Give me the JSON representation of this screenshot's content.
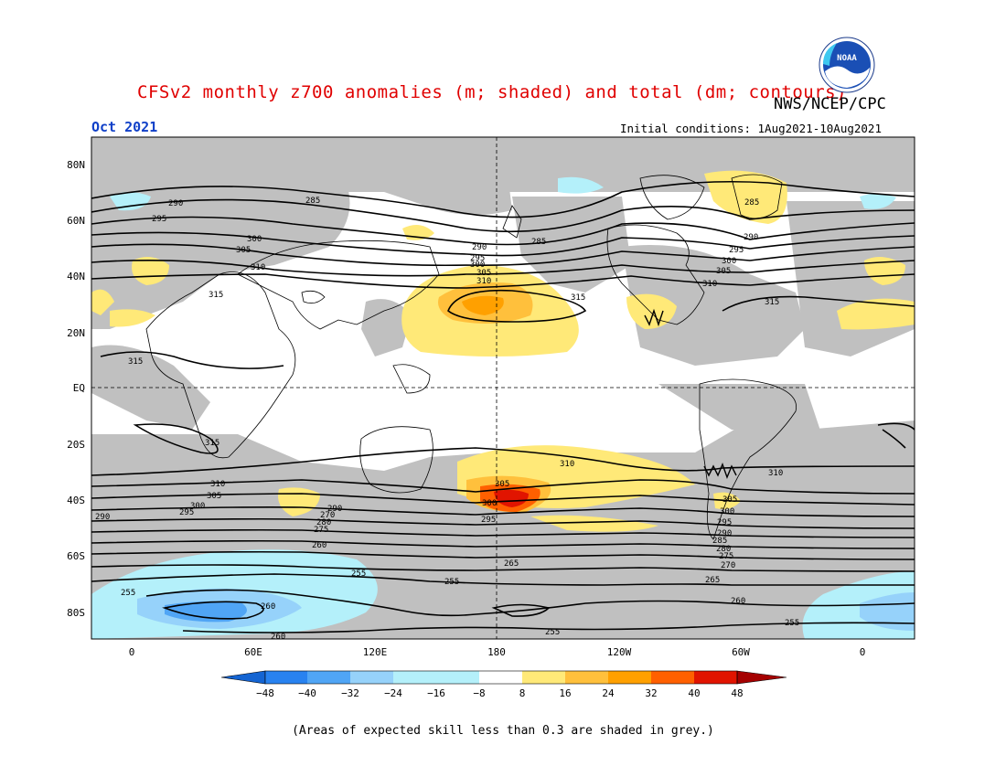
{
  "header": {
    "title": "CFSv2 monthly z700 anomalies (m; shaded) and total (dm; contours)",
    "agency": "NWS/NCEP/CPC",
    "month": "Oct 2021",
    "initial_conditions": "Initial conditions: 1Aug2021-10Aug2021",
    "logo_text": "NOAA"
  },
  "axes": {
    "lat_labels": [
      "80N",
      "60N",
      "40N",
      "20N",
      "EQ",
      "20S",
      "40S",
      "60S",
      "80S"
    ],
    "lon_labels": [
      "0",
      "60E",
      "120E",
      "180",
      "120W",
      "60W",
      "0"
    ]
  },
  "colorbar": {
    "labels": [
      "−48",
      "−40",
      "−32",
      "−24",
      "−16",
      "−8",
      "8",
      "16",
      "24",
      "32",
      "40",
      "48"
    ],
    "colors": [
      "#1464d2",
      "#2882f0",
      "#50a5f5",
      "#96d2fa",
      "#b4f0fa",
      "#ffffff",
      "#ffe978",
      "#ffc03c",
      "#ffa000",
      "#ff6000",
      "#e11400",
      "#a50000"
    ]
  },
  "contour_labels": [
    "285",
    "290",
    "295",
    "300",
    "305",
    "310",
    "315",
    "260",
    "265",
    "270",
    "275",
    "280",
    "255"
  ],
  "colors": {
    "skill_grey": "#c0c0c0",
    "title_red": "#e00000",
    "month_blue": "#1040c8"
  },
  "footnote": "(Areas of expected skill less than 0.3 are shaded in grey.)"
}
